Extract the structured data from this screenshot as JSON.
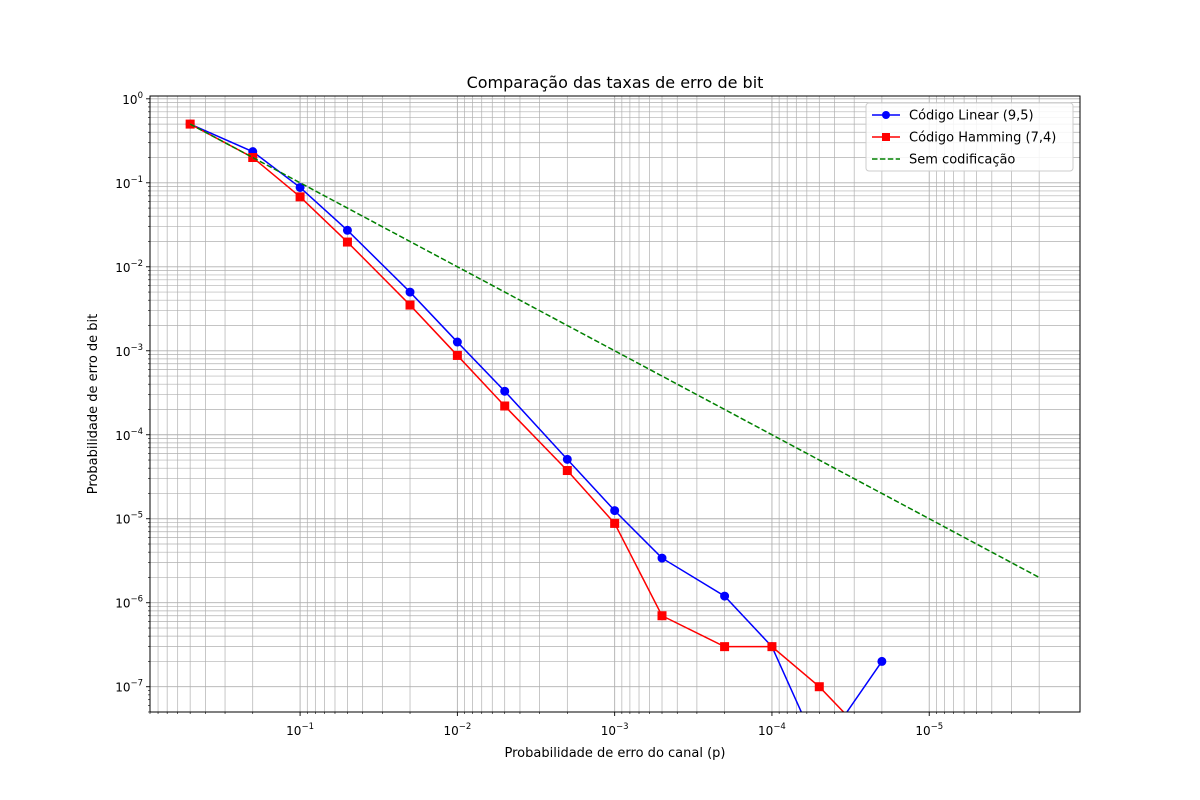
{
  "chart_data": {
    "type": "line",
    "title": "Comparação das taxas de erro de bit",
    "xlabel": "Probabilidade de erro do canal (p)",
    "ylabel": "Probabilidade de erro de bit",
    "x_scale": "log",
    "y_scale": "log",
    "x_axis_inverted": true,
    "xlim": [
      0.9,
      1.1e-06
    ],
    "ylim": [
      5e-08,
      1.08
    ],
    "grid": true,
    "legend_position": "top-right",
    "x_ticks": [
      {
        "value": 0.1,
        "mant": "10",
        "exp": "−1"
      },
      {
        "value": 0.01,
        "mant": "10",
        "exp": "−2"
      },
      {
        "value": 0.001,
        "mant": "10",
        "exp": "−3"
      },
      {
        "value": 0.0001,
        "mant": "10",
        "exp": "−4"
      },
      {
        "value": 1e-05,
        "mant": "10",
        "exp": "−5"
      }
    ],
    "y_ticks": [
      {
        "value": 1,
        "mant": "10",
        "exp": "0"
      },
      {
        "value": 0.1,
        "mant": "10",
        "exp": "−1"
      },
      {
        "value": 0.01,
        "mant": "10",
        "exp": "−2"
      },
      {
        "value": 0.001,
        "mant": "10",
        "exp": "−3"
      },
      {
        "value": 0.0001,
        "mant": "10",
        "exp": "−4"
      },
      {
        "value": 1e-05,
        "mant": "10",
        "exp": "−5"
      },
      {
        "value": 1e-06,
        "mant": "10",
        "exp": "−6"
      },
      {
        "value": 1e-07,
        "mant": "10",
        "exp": "−7"
      }
    ],
    "x": [
      0.5,
      0.2,
      0.1,
      0.05,
      0.02,
      0.01,
      0.005,
      0.002,
      0.001,
      0.0005,
      0.0002,
      0.0001,
      5e-05,
      2e-05,
      1e-05,
      5e-06,
      2e-06
    ],
    "series": [
      {
        "name": "Código Linear (9,5)",
        "color": "#0000ff",
        "marker": "circle",
        "linestyle": "solid",
        "values": [
          0.5,
          0.235,
          0.088,
          0.0272,
          0.005,
          0.00127,
          0.00033,
          5.1e-05,
          1.25e-05,
          3.4e-06,
          1.2e-06,
          3e-07,
          0,
          2e-07,
          null,
          null,
          null
        ]
      },
      {
        "name": "Código Hamming (7,4)",
        "color": "#ff0000",
        "marker": "square",
        "linestyle": "solid",
        "values": [
          0.5,
          0.2,
          0.068,
          0.0197,
          0.0035,
          0.00088,
          0.00022,
          3.75e-05,
          8.8e-06,
          7e-07,
          3e-07,
          3e-07,
          1e-07,
          0,
          null,
          null,
          null
        ]
      },
      {
        "name": "Sem codificação",
        "color": "#008000",
        "marker": "none",
        "linestyle": "dashed",
        "values": [
          0.5,
          0.2,
          0.1,
          0.05,
          0.02,
          0.01,
          0.005,
          0.002,
          0.001,
          0.0005,
          0.0002,
          0.0001,
          5e-05,
          2e-05,
          1e-05,
          5e-06,
          2e-06
        ]
      }
    ]
  }
}
